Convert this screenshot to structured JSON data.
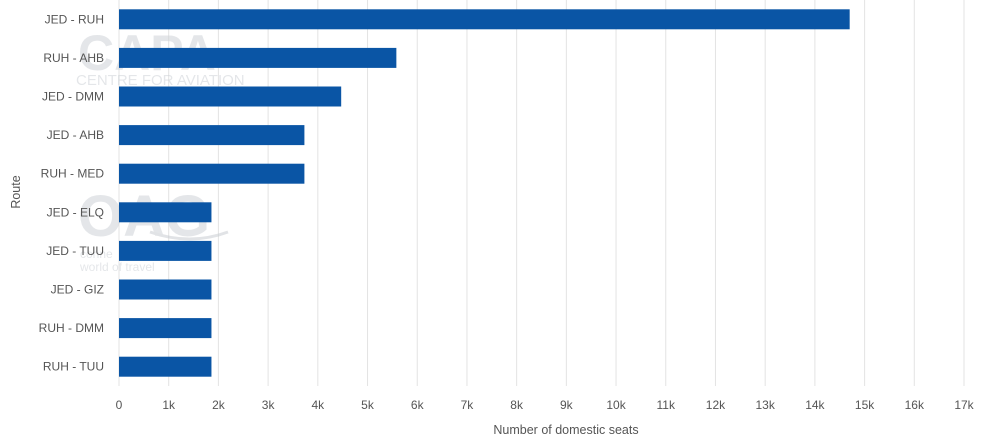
{
  "chart_data": {
    "type": "bar",
    "orientation": "horizontal",
    "categories": [
      "JED - RUH",
      "RUH - AHB",
      "JED - DMM",
      "JED - AHB",
      "RUH - MED",
      "JED - ELQ",
      "JED - TUU",
      "JED - GIZ",
      "RUH - DMM",
      "RUH - TUU"
    ],
    "values": [
      14700,
      5580,
      4470,
      3730,
      3730,
      1860,
      1860,
      1860,
      1860,
      1860
    ],
    "xlabel": "Number of domestic seats",
    "ylabel": "Route",
    "xlim": [
      0,
      17000
    ],
    "xticks": [
      0,
      1000,
      2000,
      3000,
      4000,
      5000,
      6000,
      7000,
      8000,
      9000,
      10000,
      11000,
      12000,
      13000,
      14000,
      15000,
      16000,
      17000
    ],
    "xtick_labels": [
      "0",
      "1k",
      "2k",
      "3k",
      "4k",
      "5k",
      "6k",
      "7k",
      "8k",
      "9k",
      "10k",
      "11k",
      "12k",
      "13k",
      "14k",
      "15k",
      "16k",
      "17k"
    ],
    "grid": "vertical",
    "legend": "none",
    "bar_color": "#0a55a5",
    "grid_color": "#e3e3e3"
  },
  "watermarks": {
    "capa_logo": "CAPA",
    "capa_tagline": "CENTRE FOR AVIATION",
    "oag_logo": "OAG",
    "oag_tagline_1": "conne",
    "oag_tagline_2": "world of travel"
  }
}
